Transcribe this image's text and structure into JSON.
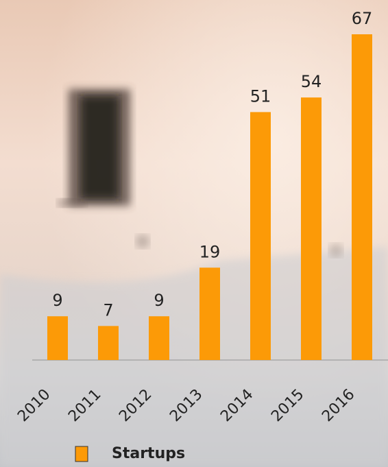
{
  "chart_data": {
    "type": "bar",
    "categories": [
      "2010",
      "2011",
      "2012",
      "2013",
      "2014",
      "2015",
      "2016"
    ],
    "series": [
      {
        "name": "Startups",
        "color": "#fc9a07",
        "values": [
          9,
          7,
          9,
          19,
          51,
          54,
          67
        ]
      }
    ]
  }
}
